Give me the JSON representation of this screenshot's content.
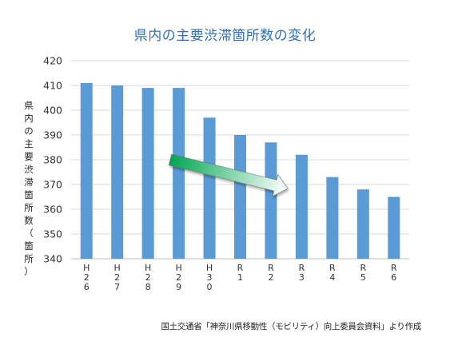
{
  "chart_data": {
    "type": "bar",
    "title": "県内の主要渋滞箇所数の変化",
    "ylabel": "県内の主要渋滞箇所数（箇所）",
    "xlabel": "",
    "categories": [
      "H26",
      "H27",
      "H28",
      "H29",
      "H30",
      "R1",
      "R2",
      "R3",
      "R4",
      "R5",
      "R6"
    ],
    "values": [
      411,
      410,
      409,
      409,
      397,
      390,
      387,
      382,
      373,
      368,
      365
    ],
    "ylim": [
      340,
      420
    ],
    "yticks": [
      340,
      350,
      360,
      370,
      380,
      390,
      400,
      410,
      420
    ],
    "grid": true,
    "bar_color": "#5b9bd5",
    "arrow_colors": [
      "#00a651",
      "#ffffff"
    ],
    "source": "国土交通省「神奈川県移動性（モビリティ）向上委員会資料」より作成"
  }
}
